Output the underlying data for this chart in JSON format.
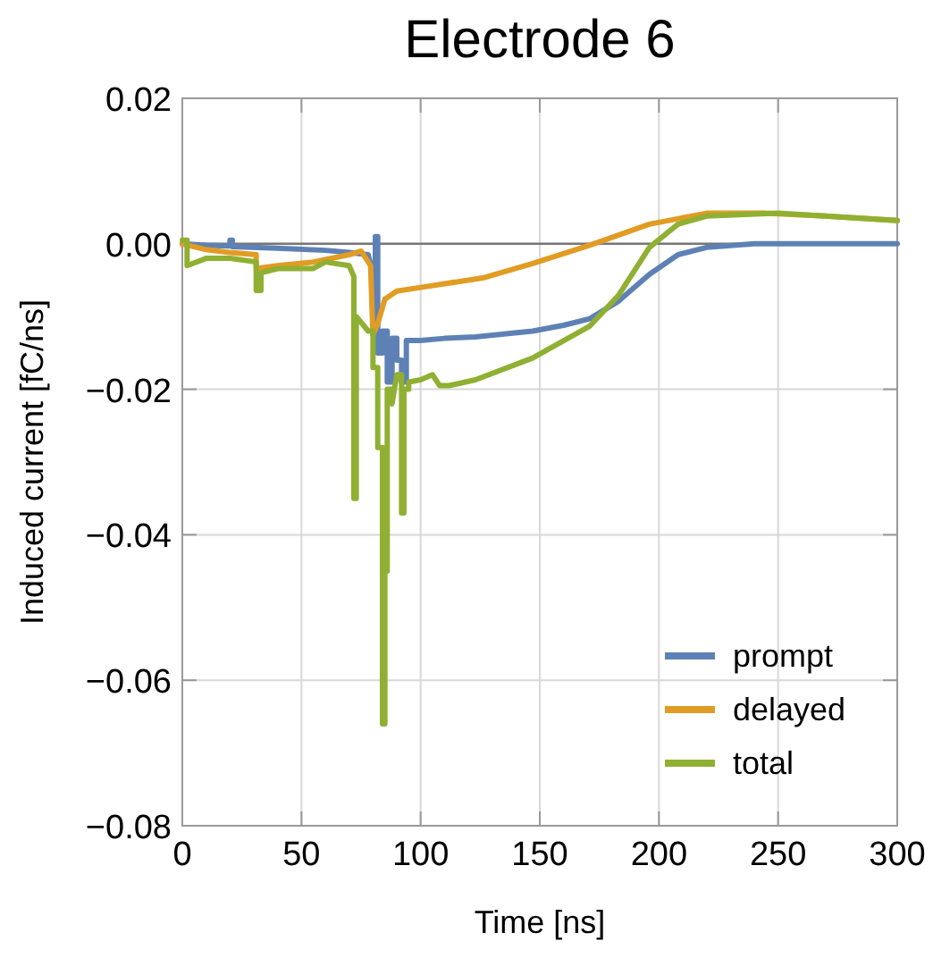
{
  "chart_data": {
    "type": "line",
    "title": "Electrode 6",
    "xlabel": "Time [ns]",
    "ylabel": "Induced current [fC/ns]",
    "xlim": [
      0,
      300
    ],
    "xticks": [
      0,
      50,
      100,
      150,
      200,
      250,
      300
    ],
    "ylim": [
      -0.08,
      0.02
    ],
    "yticks": [
      {
        "value": -0.08,
        "label": "−0.08"
      },
      {
        "value": -0.06,
        "label": "−0.06"
      },
      {
        "value": -0.04,
        "label": "−0.04"
      },
      {
        "value": -0.02,
        "label": "−0.02"
      },
      {
        "value": 0,
        "label": "0.00"
      },
      {
        "value": 0.02,
        "label": "0.02"
      }
    ],
    "grid": true,
    "legend": "bottom right",
    "line_style": "solid",
    "marker": "none",
    "ref_lines": [
      {
        "axis": "y",
        "value": 0,
        "color": "#777777"
      }
    ],
    "series": [
      {
        "name": "prompt",
        "color": "#5e81b5",
        "x": [
          0,
          10,
          20,
          20,
          21,
          21,
          40,
          60,
          70,
          78,
          80,
          80,
          81,
          81,
          82,
          82,
          84,
          84,
          86,
          86,
          88,
          88,
          90,
          90,
          92,
          92,
          94,
          94,
          97,
          100,
          110,
          123,
          147,
          160,
          171,
          183,
          196,
          208,
          220,
          240,
          300
        ],
        "values": [
          0,
          -0.0002,
          -0.0003,
          0.0005,
          0.0005,
          -0.0004,
          -0.0006,
          -0.0009,
          -0.0012,
          -0.0015,
          -0.004,
          -0.012,
          -0.012,
          0.001,
          0.001,
          -0.015,
          -0.015,
          -0.012,
          -0.012,
          -0.019,
          -0.019,
          -0.013,
          -0.013,
          -0.016,
          -0.016,
          -0.019,
          -0.019,
          -0.0133,
          -0.0133,
          -0.0133,
          -0.013,
          -0.0128,
          -0.012,
          -0.0112,
          -0.0103,
          -0.0079,
          -0.0042,
          -0.0015,
          -0.0005,
          0,
          0
        ]
      },
      {
        "name": "delayed",
        "color": "#e19c24",
        "x": [
          0,
          10,
          20,
          31,
          31,
          40,
          55,
          70,
          75,
          79,
          80,
          82,
          85,
          90,
          100,
          110,
          126,
          147,
          171,
          196,
          220,
          244,
          270,
          300
        ],
        "values": [
          0,
          -0.0008,
          -0.0012,
          -0.0015,
          -0.0034,
          -0.003,
          -0.0025,
          -0.0015,
          -0.001,
          -0.003,
          -0.0125,
          -0.011,
          -0.0076,
          -0.0065,
          -0.006,
          -0.0055,
          -0.0047,
          -0.0027,
          -0.0002,
          0.0027,
          0.0042,
          0.0042,
          0.0038,
          0.0032
        ],
        "type": "line"
      },
      {
        "name": "total",
        "color": "#8fb032",
        "x": [
          0,
          2,
          2,
          10,
          20,
          31,
          31,
          33,
          33,
          40,
          55,
          60,
          70,
          72,
          72,
          73,
          73,
          78,
          80,
          80,
          82,
          82,
          84,
          84,
          85,
          85,
          86,
          86,
          88,
          88,
          90,
          92,
          92,
          93,
          93,
          95,
          95,
          100,
          105,
          108,
          112,
          123,
          147,
          171,
          183,
          196,
          208,
          220,
          250,
          300
        ],
        "values": [
          0.0005,
          0.0005,
          -0.003,
          -0.002,
          -0.002,
          -0.0025,
          -0.0064,
          -0.0064,
          -0.004,
          -0.0034,
          -0.0034,
          -0.0025,
          -0.003,
          -0.0045,
          -0.035,
          -0.035,
          -0.01,
          -0.012,
          -0.012,
          -0.017,
          -0.017,
          -0.028,
          -0.028,
          -0.066,
          -0.066,
          -0.045,
          -0.045,
          -0.02,
          -0.02,
          -0.022,
          -0.018,
          -0.018,
          -0.037,
          -0.037,
          -0.02,
          -0.02,
          -0.019,
          -0.0187,
          -0.018,
          -0.0195,
          -0.0195,
          -0.0187,
          -0.0157,
          -0.0113,
          -0.0071,
          -0.0005,
          0.0027,
          0.0038,
          0.0042,
          0.0032
        ]
      }
    ]
  }
}
